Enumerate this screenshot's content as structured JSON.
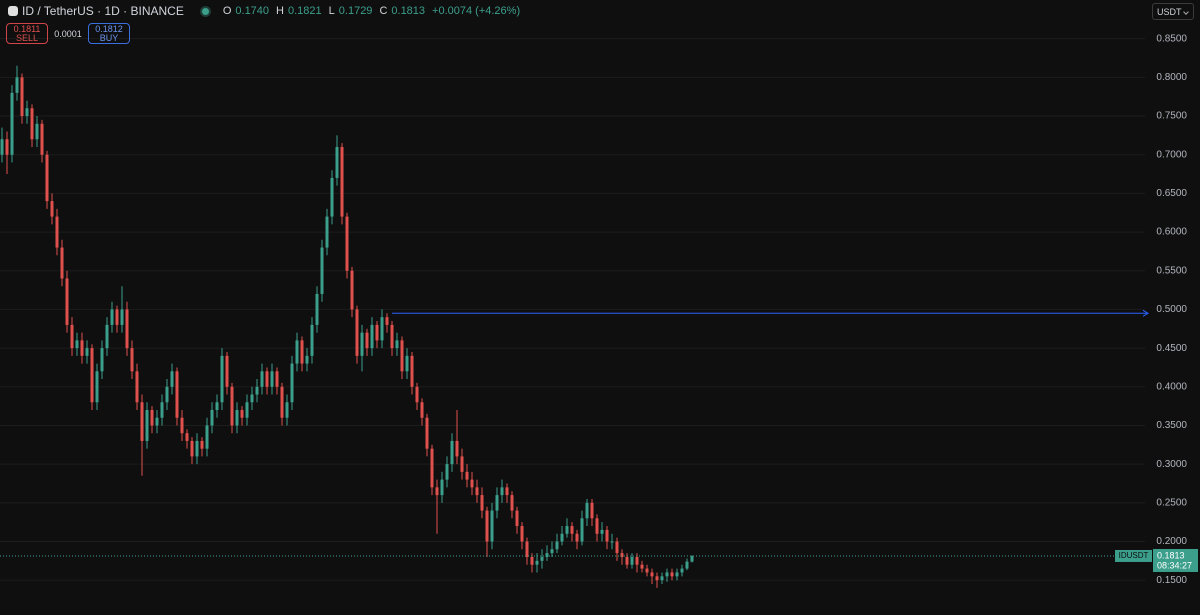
{
  "chart_data": {
    "type": "candlestick",
    "title": "ID / TetherUS · 1D · BINANCE",
    "ohlc": [
      {
        "key": "O",
        "label": "0.1740"
      },
      {
        "key": "H",
        "label": "0.1821"
      },
      {
        "key": "L",
        "label": "0.1729"
      },
      {
        "key": "C",
        "label": "0.1813"
      }
    ],
    "change": "+0.0074 (+4.26%)",
    "sell": {
      "price": 0.1811,
      "label": "SELL"
    },
    "spread": 0.0001,
    "buy": {
      "price": 0.1812,
      "label": "BUY"
    },
    "currency": "USDT",
    "symbol": "IDUSDT",
    "countdown": "08:34:27",
    "up_color": "#3c9f8c",
    "down_color": "#e0504d",
    "grid": true,
    "ylim": [
      0.105,
      0.9
    ],
    "yticks": [
      {
        "value": 0.15,
        "label": "0.1500"
      },
      {
        "value": 0.2,
        "label": "0.2000"
      },
      {
        "value": 0.25,
        "label": "0.2500"
      },
      {
        "value": 0.3,
        "label": "0.3000"
      },
      {
        "value": 0.35,
        "label": "0.3500"
      },
      {
        "value": 0.4,
        "label": "0.4000"
      },
      {
        "value": 0.45,
        "label": "0.4500"
      },
      {
        "value": 0.5,
        "label": "0.5000"
      },
      {
        "value": 0.55,
        "label": "0.5500"
      },
      {
        "value": 0.6,
        "label": "0.6000"
      },
      {
        "value": 0.65,
        "label": "0.6500"
      },
      {
        "value": 0.7,
        "label": "0.7000"
      },
      {
        "value": 0.75,
        "label": "0.7500"
      },
      {
        "value": 0.8,
        "label": "0.8000"
      },
      {
        "value": 0.85,
        "label": "0.8500"
      }
    ],
    "hline": {
      "value": 0.495,
      "color": "#2962ff"
    },
    "open": [
      0.7,
      0.72,
      0.7,
      0.78,
      0.8,
      0.75,
      0.76,
      0.72,
      0.74,
      0.7,
      0.64,
      0.62,
      0.58,
      0.54,
      0.48,
      0.45,
      0.46,
      0.44,
      0.45,
      0.38,
      0.42,
      0.45,
      0.48,
      0.5,
      0.48,
      0.5,
      0.45,
      0.42,
      0.38,
      0.33,
      0.37,
      0.35,
      0.36,
      0.38,
      0.4,
      0.42,
      0.36,
      0.34,
      0.33,
      0.31,
      0.33,
      0.32,
      0.35,
      0.37,
      0.38,
      0.44,
      0.4,
      0.35,
      0.37,
      0.36,
      0.38,
      0.39,
      0.4,
      0.42,
      0.4,
      0.42,
      0.4,
      0.36,
      0.38,
      0.43,
      0.46,
      0.43,
      0.44,
      0.48,
      0.52,
      0.58,
      0.62,
      0.67,
      0.71,
      0.62,
      0.55,
      0.5,
      0.44,
      0.47,
      0.45,
      0.48,
      0.46,
      0.49,
      0.48,
      0.45,
      0.46,
      0.42,
      0.44,
      0.4,
      0.38,
      0.36,
      0.32,
      0.27,
      0.26,
      0.28,
      0.3,
      0.33,
      0.31,
      0.29,
      0.28,
      0.27,
      0.26,
      0.24,
      0.2,
      0.24,
      0.26,
      0.27,
      0.26,
      0.24,
      0.22,
      0.2,
      0.18,
      0.17,
      0.175,
      0.18,
      0.185,
      0.19,
      0.2,
      0.21,
      0.22,
      0.21,
      0.2,
      0.23,
      0.25,
      0.23,
      0.21,
      0.215,
      0.2,
      0.2,
      0.185,
      0.18,
      0.17,
      0.18,
      0.17,
      0.165,
      0.16,
      0.155,
      0.15,
      0.155,
      0.16,
      0.155,
      0.16,
      0.165,
      0.174
    ],
    "high": [
      0.735,
      0.73,
      0.79,
      0.815,
      0.805,
      0.77,
      0.765,
      0.75,
      0.745,
      0.705,
      0.65,
      0.63,
      0.59,
      0.55,
      0.49,
      0.47,
      0.47,
      0.46,
      0.455,
      0.43,
      0.46,
      0.49,
      0.51,
      0.505,
      0.53,
      0.51,
      0.46,
      0.43,
      0.39,
      0.38,
      0.375,
      0.37,
      0.39,
      0.41,
      0.43,
      0.425,
      0.37,
      0.345,
      0.335,
      0.34,
      0.335,
      0.36,
      0.38,
      0.39,
      0.45,
      0.445,
      0.405,
      0.38,
      0.375,
      0.39,
      0.4,
      0.41,
      0.43,
      0.425,
      0.43,
      0.425,
      0.405,
      0.39,
      0.44,
      0.47,
      0.465,
      0.45,
      0.49,
      0.53,
      0.59,
      0.63,
      0.68,
      0.725,
      0.715,
      0.625,
      0.555,
      0.505,
      0.48,
      0.475,
      0.49,
      0.485,
      0.5,
      0.495,
      0.485,
      0.47,
      0.465,
      0.45,
      0.445,
      0.405,
      0.385,
      0.365,
      0.325,
      0.28,
      0.29,
      0.31,
      0.34,
      0.37,
      0.32,
      0.3,
      0.29,
      0.28,
      0.27,
      0.245,
      0.25,
      0.27,
      0.28,
      0.275,
      0.265,
      0.245,
      0.225,
      0.205,
      0.185,
      0.185,
      0.19,
      0.195,
      0.2,
      0.21,
      0.22,
      0.23,
      0.225,
      0.215,
      0.24,
      0.255,
      0.255,
      0.235,
      0.225,
      0.22,
      0.21,
      0.205,
      0.19,
      0.185,
      0.185,
      0.185,
      0.175,
      0.17,
      0.165,
      0.16,
      0.16,
      0.165,
      0.165,
      0.165,
      0.17,
      0.178,
      0.1821
    ],
    "low": [
      0.69,
      0.675,
      0.69,
      0.77,
      0.74,
      0.74,
      0.71,
      0.71,
      0.69,
      0.63,
      0.61,
      0.57,
      0.53,
      0.47,
      0.44,
      0.44,
      0.43,
      0.43,
      0.37,
      0.37,
      0.41,
      0.44,
      0.47,
      0.47,
      0.47,
      0.44,
      0.41,
      0.37,
      0.285,
      0.32,
      0.34,
      0.34,
      0.35,
      0.37,
      0.39,
      0.35,
      0.33,
      0.32,
      0.3,
      0.3,
      0.31,
      0.31,
      0.34,
      0.36,
      0.37,
      0.39,
      0.34,
      0.34,
      0.35,
      0.35,
      0.37,
      0.38,
      0.39,
      0.39,
      0.39,
      0.39,
      0.35,
      0.35,
      0.37,
      0.42,
      0.42,
      0.42,
      0.43,
      0.47,
      0.51,
      0.57,
      0.61,
      0.66,
      0.61,
      0.54,
      0.49,
      0.43,
      0.42,
      0.44,
      0.44,
      0.45,
      0.45,
      0.47,
      0.44,
      0.44,
      0.41,
      0.41,
      0.39,
      0.37,
      0.35,
      0.31,
      0.26,
      0.21,
      0.25,
      0.27,
      0.29,
      0.3,
      0.28,
      0.27,
      0.26,
      0.25,
      0.23,
      0.18,
      0.19,
      0.23,
      0.25,
      0.25,
      0.23,
      0.21,
      0.19,
      0.17,
      0.16,
      0.16,
      0.165,
      0.175,
      0.18,
      0.185,
      0.195,
      0.205,
      0.2,
      0.19,
      0.195,
      0.22,
      0.22,
      0.2,
      0.2,
      0.19,
      0.19,
      0.175,
      0.17,
      0.165,
      0.165,
      0.16,
      0.16,
      0.155,
      0.145,
      0.14,
      0.145,
      0.148,
      0.15,
      0.15,
      0.155,
      0.163,
      0.1729
    ],
    "close": [
      0.72,
      0.7,
      0.78,
      0.8,
      0.75,
      0.76,
      0.72,
      0.74,
      0.7,
      0.64,
      0.62,
      0.58,
      0.54,
      0.48,
      0.45,
      0.46,
      0.44,
      0.45,
      0.38,
      0.42,
      0.45,
      0.48,
      0.5,
      0.48,
      0.5,
      0.45,
      0.42,
      0.38,
      0.33,
      0.37,
      0.35,
      0.36,
      0.38,
      0.4,
      0.42,
      0.36,
      0.34,
      0.33,
      0.31,
      0.33,
      0.32,
      0.35,
      0.37,
      0.38,
      0.44,
      0.4,
      0.35,
      0.37,
      0.36,
      0.38,
      0.39,
      0.4,
      0.42,
      0.4,
      0.42,
      0.4,
      0.36,
      0.38,
      0.43,
      0.46,
      0.43,
      0.44,
      0.48,
      0.52,
      0.58,
      0.62,
      0.67,
      0.71,
      0.62,
      0.55,
      0.5,
      0.44,
      0.47,
      0.45,
      0.48,
      0.46,
      0.49,
      0.48,
      0.45,
      0.46,
      0.42,
      0.44,
      0.4,
      0.38,
      0.36,
      0.32,
      0.27,
      0.26,
      0.28,
      0.3,
      0.33,
      0.31,
      0.29,
      0.28,
      0.27,
      0.26,
      0.24,
      0.2,
      0.24,
      0.26,
      0.27,
      0.26,
      0.24,
      0.22,
      0.2,
      0.18,
      0.17,
      0.175,
      0.18,
      0.185,
      0.19,
      0.2,
      0.21,
      0.22,
      0.21,
      0.2,
      0.23,
      0.25,
      0.23,
      0.21,
      0.215,
      0.2,
      0.2,
      0.185,
      0.18,
      0.17,
      0.18,
      0.17,
      0.165,
      0.16,
      0.155,
      0.15,
      0.155,
      0.16,
      0.155,
      0.16,
      0.165,
      0.174,
      0.1813
    ]
  }
}
